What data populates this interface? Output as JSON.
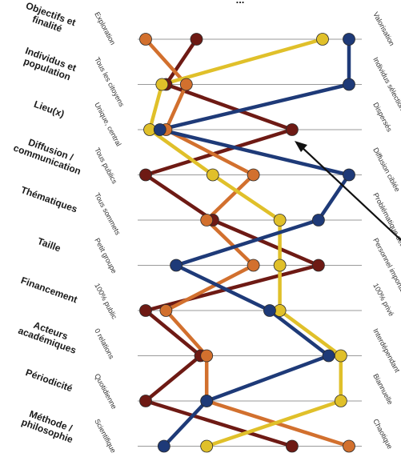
{
  "chart_data": {
    "type": "line",
    "title_fragment": "...",
    "axes": [
      {
        "name": "Objectifs et finalité",
        "low": "Exploration",
        "high": "Valorisation"
      },
      {
        "name": "Individus et population",
        "low": "Tous les citoyens",
        "high": "Individus sélectionnés"
      },
      {
        "name": "Lieu(x)",
        "low": "Unique, central",
        "high": "Dispersés"
      },
      {
        "name": "Diffusion / communication",
        "low": "Tous publics",
        "high": "Diffusion ciblée"
      },
      {
        "name": "Thématiques",
        "low": "Tous sommets",
        "high": "Problématique déterminée"
      },
      {
        "name": "Taille",
        "low": "Petit groupe",
        "high": "Personnel important"
      },
      {
        "name": "Financement",
        "low": "100% public",
        "high": "100% privé"
      },
      {
        "name": "Acteurs académiques",
        "low": "0 relations",
        "high": "Interdépendant"
      },
      {
        "name": "Périodicité",
        "low": "Quotidienne",
        "high": "Biannuelle"
      },
      {
        "name": "Méthode / philosophie",
        "low": "Scientifique",
        "high": "Chaotique"
      }
    ],
    "scale": [
      0,
      1
    ],
    "series": [
      {
        "color": "#6e1a14",
        "values": [
          0.25,
          0.1,
          0.72,
          0.0,
          0.33,
          0.85,
          0.0,
          0.27,
          0.0,
          0.72
        ]
      },
      {
        "color": "#d2702e",
        "values": [
          0.0,
          0.2,
          0.1,
          0.53,
          0.3,
          0.53,
          0.1,
          0.3,
          0.3,
          1.0
        ]
      },
      {
        "color": "#e0c02a",
        "values": [
          0.87,
          0.08,
          0.02,
          0.33,
          0.66,
          0.66,
          0.66,
          0.96,
          0.96,
          0.3
        ]
      },
      {
        "color": "#1e3a78",
        "values": [
          1.0,
          1.0,
          0.07,
          1.0,
          0.85,
          0.15,
          0.61,
          0.9,
          0.3,
          0.09
        ]
      }
    ]
  }
}
